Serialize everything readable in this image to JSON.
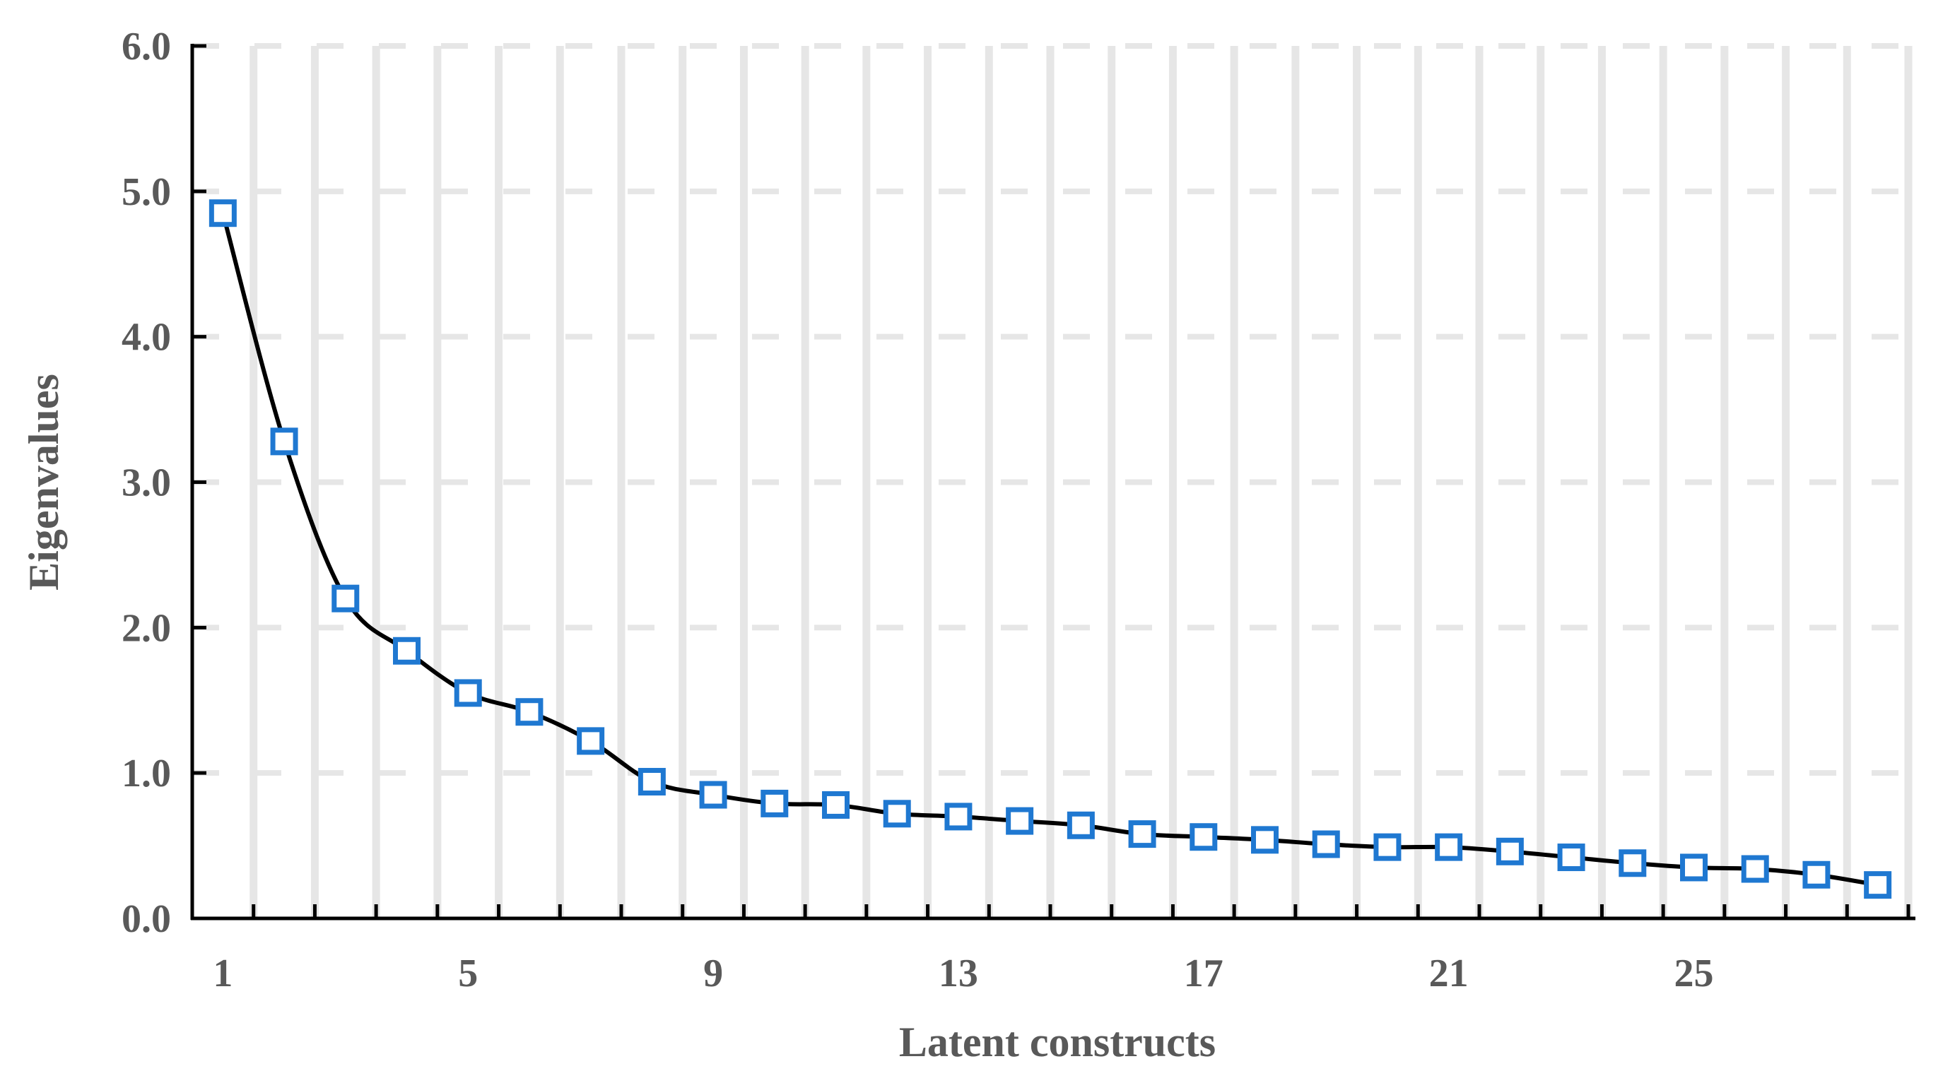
{
  "chart_data": {
    "type": "line",
    "title": "",
    "xlabel": "Latent constructs",
    "ylabel": "Eigenvalues",
    "x": [
      1,
      2,
      3,
      4,
      5,
      6,
      7,
      8,
      9,
      10,
      11,
      12,
      13,
      14,
      15,
      16,
      17,
      18,
      19,
      20,
      21,
      22,
      23,
      24,
      25,
      26,
      27,
      28
    ],
    "x_tick_labels": [
      "1",
      "5",
      "9",
      "13",
      "17",
      "21",
      "25"
    ],
    "x_tick_values": [
      1,
      5,
      9,
      13,
      17,
      21,
      25
    ],
    "xlim": [
      0.5,
      28.5
    ],
    "y_tick_labels": [
      "0.0",
      "1.0",
      "2.0",
      "3.0",
      "4.0",
      "5.0",
      "6.0"
    ],
    "y_tick_values": [
      0,
      1,
      2,
      3,
      4,
      5,
      6
    ],
    "ylim": [
      0,
      6
    ],
    "series": [
      {
        "values": [
          4.85,
          3.28,
          2.2,
          1.84,
          1.55,
          1.42,
          1.22,
          0.94,
          0.85,
          0.79,
          0.78,
          0.72,
          0.7,
          0.67,
          0.64,
          0.58,
          0.56,
          0.54,
          0.51,
          0.49,
          0.49,
          0.46,
          0.42,
          0.38,
          0.35,
          0.34,
          0.3,
          0.23
        ],
        "line_color": "#000000",
        "marker": "square-open",
        "marker_color": "#1f78d1",
        "smooth": true
      }
    ],
    "grid": {
      "vertical_bands": true,
      "horizontal_dashed": true,
      "color": "#e6e6e6"
    },
    "legend": "none"
  }
}
